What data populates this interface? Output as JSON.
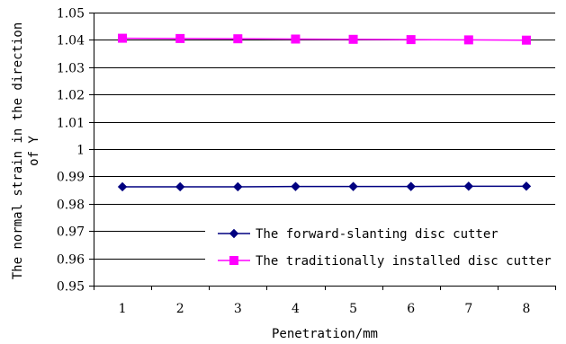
{
  "chart_data": {
    "type": "line",
    "categories": [
      "1",
      "2",
      "3",
      "4",
      "5",
      "6",
      "7",
      "8"
    ],
    "series": [
      {
        "name": "The forward-slanting disc cutter",
        "values": [
          0.9862,
          0.9862,
          0.9862,
          0.9863,
          0.9863,
          0.9863,
          0.9864,
          0.9864
        ],
        "color": "#000080",
        "marker": "diamond"
      },
      {
        "name": "The traditionally installed disc cutter",
        "values": [
          1.0406,
          1.0405,
          1.0404,
          1.0403,
          1.0402,
          1.0401,
          1.04,
          1.0399
        ],
        "color": "#FF00FF",
        "marker": "square"
      }
    ],
    "xlabel": "Penetration/mm",
    "ylabel_lines": [
      "The normal strain in the direction",
      "of Y"
    ],
    "ylim": [
      0.95,
      1.05
    ],
    "yticks": [
      "0.95",
      "0.96",
      "0.97",
      "0.98",
      "0.99",
      "1",
      "1.01",
      "1.02",
      "1.03",
      "1.04",
      "1.05"
    ],
    "grid": "horizontal",
    "legend_position": "bottom-right"
  }
}
